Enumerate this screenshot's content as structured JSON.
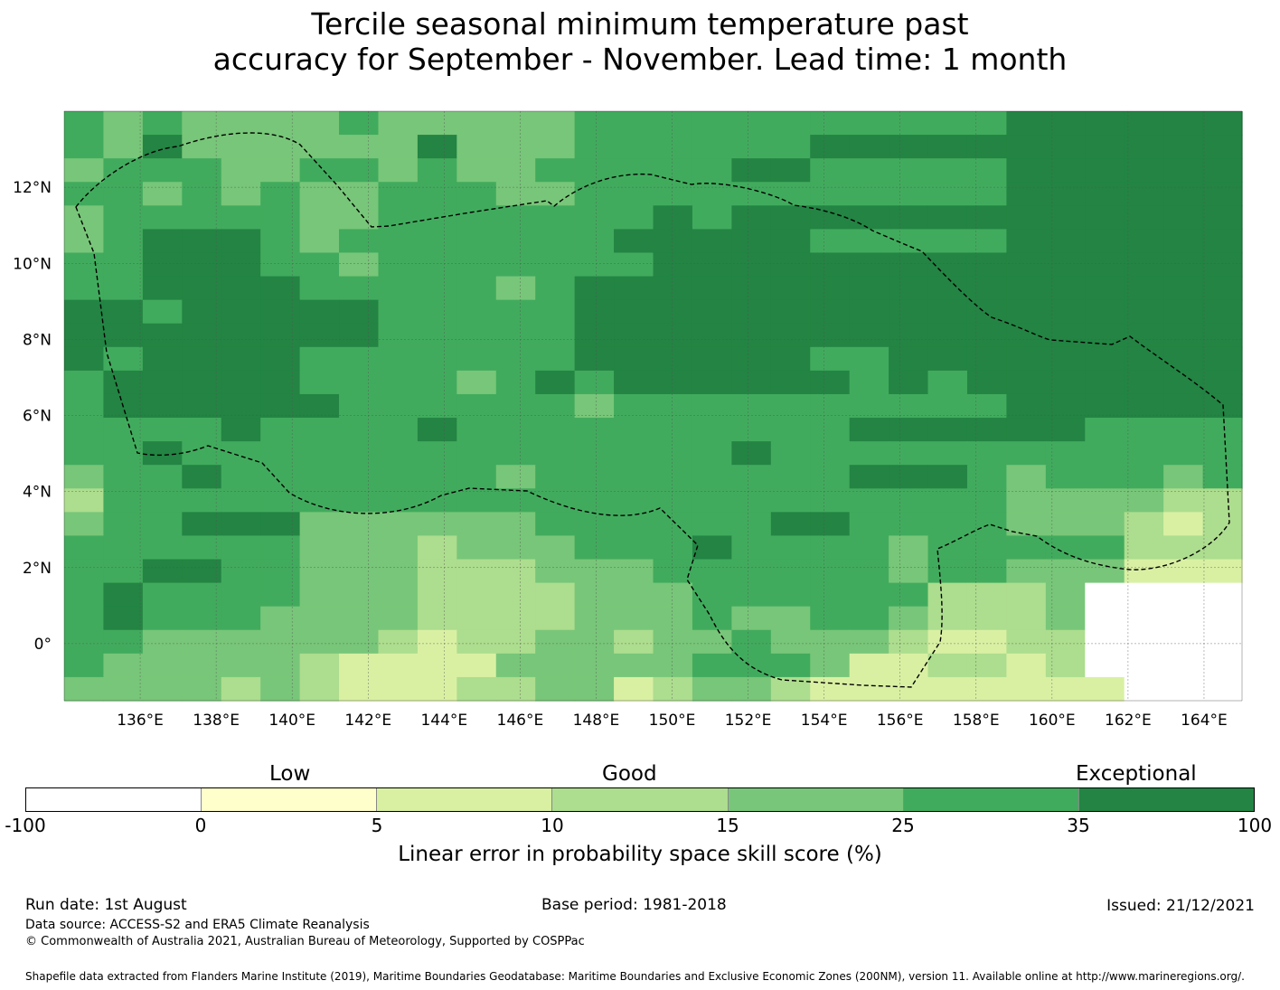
{
  "title": {
    "line1": "Tercile seasonal minimum temperature past",
    "line2": "accuracy for September - November. Lead time: 1 month"
  },
  "map": {
    "lat_labels": [
      "12°N",
      "10°N",
      "8°N",
      "6°N",
      "4°N",
      "2°N",
      "0°"
    ],
    "lon_labels": [
      "136°E",
      "138°E",
      "140°E",
      "142°E",
      "144°E",
      "146°E",
      "148°E",
      "150°E",
      "152°E",
      "154°E",
      "156°E",
      "158°E",
      "160°E",
      "162°E",
      "164°E"
    ],
    "lon_range": [
      134.0,
      165.0
    ],
    "lat_range": [
      -1.5,
      14.0
    ],
    "cell_size_deg": 0.833,
    "grid_rows_north_to_south": [
      "545444454444455555555555666666",
      "546444444644455555566666666666",
      "455544554544555556655555666666",
      "554545445554455555555555666666",
      "455555445555555656666666666666",
      "456665455555556666655555666666",
      "556665545555555666666666666666",
      "556666555554566666666666666666",
      "665666665555566666666666666666",
      "666666665555566666666666666666",
      "656666555555566666655666666666",
      "566666555545656666665656666666",
      "566666655555545555555555666666",
      "555565555655555555556666665555",
      "556555555555555556555555555555",
      "455655555554555555556665455545",
      "355555555555555555555555444433",
      "455666444444555555665555444323",
      "555555444344455565555455555333",
      "556655444333444555555455444222",
      "565555444333344455555533340000",
      "565554444333344454455433340000",
      "554444443233443445444322330000",
      "544444322224444455542233230000",
      "444434322233442344322222222000"
    ]
  },
  "colorbar": {
    "quality_labels": [
      "Low",
      "Good",
      "Exceptional"
    ],
    "ticks": [
      "-100",
      "0",
      "5",
      "10",
      "15",
      "25",
      "35",
      "100"
    ],
    "colors": [
      "#ffffff",
      "#ffffcc",
      "#d9f0a3",
      "#addd8e",
      "#78c679",
      "#41ab5d",
      "#238443"
    ],
    "label": "Linear error in probability space skill score (%)"
  },
  "footer": {
    "run_date": "Run date: 1st August",
    "base_period": "Base period: 1981-2018",
    "issued": "Issued: 21/12/2021",
    "data_source": "Data source: ACCESS-S2 and ERA5 Climate Reanalysis",
    "copyright": "© Commonwealth of Australia 2021, Australian Bureau of Meteorology, Supported by COSPPac",
    "shapefile": "Shapefile data extracted from Flanders Marine Institute (2019), Maritime Boundaries Geodatabase: Maritime Boundaries and Exclusive Economic Zones (200NM), version 11. Available online at http://www.marineregions.org/."
  }
}
